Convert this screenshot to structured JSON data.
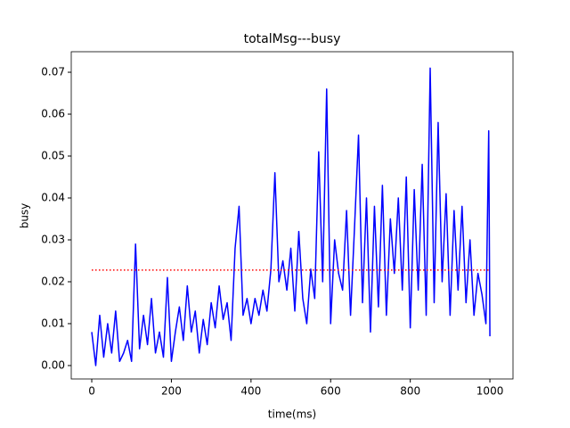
{
  "chart_data": {
    "type": "line",
    "title": "totalMsg---busy",
    "x_label": "time(ms)",
    "y_label": "busy",
    "xlim": [
      -51.5,
      1058
    ],
    "ylim": [
      -0.0032,
      0.0749
    ],
    "xticks": [
      0,
      200,
      400,
      600,
      800,
      1000
    ],
    "yticks": [
      {
        "value": 0,
        "label": "0.00"
      },
      {
        "value": 0.01,
        "label": "0.01"
      },
      {
        "value": 0.02,
        "label": "0.02"
      },
      {
        "value": 0.03,
        "label": "0.03"
      },
      {
        "value": 0.04,
        "label": "0.04"
      },
      {
        "value": 0.05,
        "label": "0.05"
      },
      {
        "value": 0.06,
        "label": "0.06"
      },
      {
        "value": 0.07,
        "label": "0.07"
      }
    ],
    "series": [
      {
        "color": "#0000ff",
        "linestyle": "solid",
        "x": [
          0,
          10,
          20,
          30,
          40,
          50,
          60,
          70,
          80,
          90,
          100,
          110,
          120,
          130,
          140,
          150,
          160,
          170,
          180,
          190,
          200,
          210,
          220,
          230,
          240,
          250,
          260,
          270,
          280,
          290,
          300,
          310,
          320,
          330,
          340,
          350,
          360,
          370,
          380,
          390,
          400,
          410,
          420,
          430,
          440,
          450,
          460,
          470,
          480,
          490,
          500,
          510,
          520,
          530,
          540,
          550,
          560,
          570,
          580,
          590,
          600,
          610,
          620,
          630,
          640,
          650,
          660,
          670,
          680,
          690,
          700,
          710,
          720,
          730,
          740,
          750,
          760,
          770,
          780,
          790,
          800,
          810,
          820,
          830,
          840,
          850,
          860,
          870,
          880,
          890,
          900,
          910,
          920,
          930,
          940,
          950,
          960,
          970,
          980,
          990,
          997,
          1000
        ],
        "values": [
          0.008,
          0.0,
          0.012,
          0.002,
          0.01,
          0.003,
          0.013,
          0.001,
          0.003,
          0.006,
          0.001,
          0.029,
          0.004,
          0.012,
          0.005,
          0.016,
          0.003,
          0.008,
          0.002,
          0.021,
          0.001,
          0.008,
          0.014,
          0.006,
          0.019,
          0.008,
          0.013,
          0.003,
          0.011,
          0.005,
          0.015,
          0.009,
          0.019,
          0.011,
          0.015,
          0.006,
          0.028,
          0.038,
          0.012,
          0.016,
          0.01,
          0.016,
          0.012,
          0.018,
          0.013,
          0.023,
          0.046,
          0.02,
          0.025,
          0.018,
          0.028,
          0.013,
          0.032,
          0.016,
          0.01,
          0.023,
          0.016,
          0.051,
          0.02,
          0.066,
          0.01,
          0.03,
          0.022,
          0.018,
          0.037,
          0.012,
          0.033,
          0.055,
          0.015,
          0.04,
          0.008,
          0.038,
          0.014,
          0.043,
          0.012,
          0.035,
          0.022,
          0.04,
          0.018,
          0.045,
          0.009,
          0.042,
          0.018,
          0.048,
          0.012,
          0.071,
          0.015,
          0.058,
          0.02,
          0.041,
          0.012,
          0.037,
          0.018,
          0.038,
          0.015,
          0.03,
          0.012,
          0.022,
          0.017,
          0.01,
          0.056,
          0.007
        ]
      },
      {
        "color": "#ff0000",
        "linestyle": "dotted",
        "x": [
          0,
          1000
        ],
        "values": [
          0.0228,
          0.0228
        ]
      }
    ]
  }
}
